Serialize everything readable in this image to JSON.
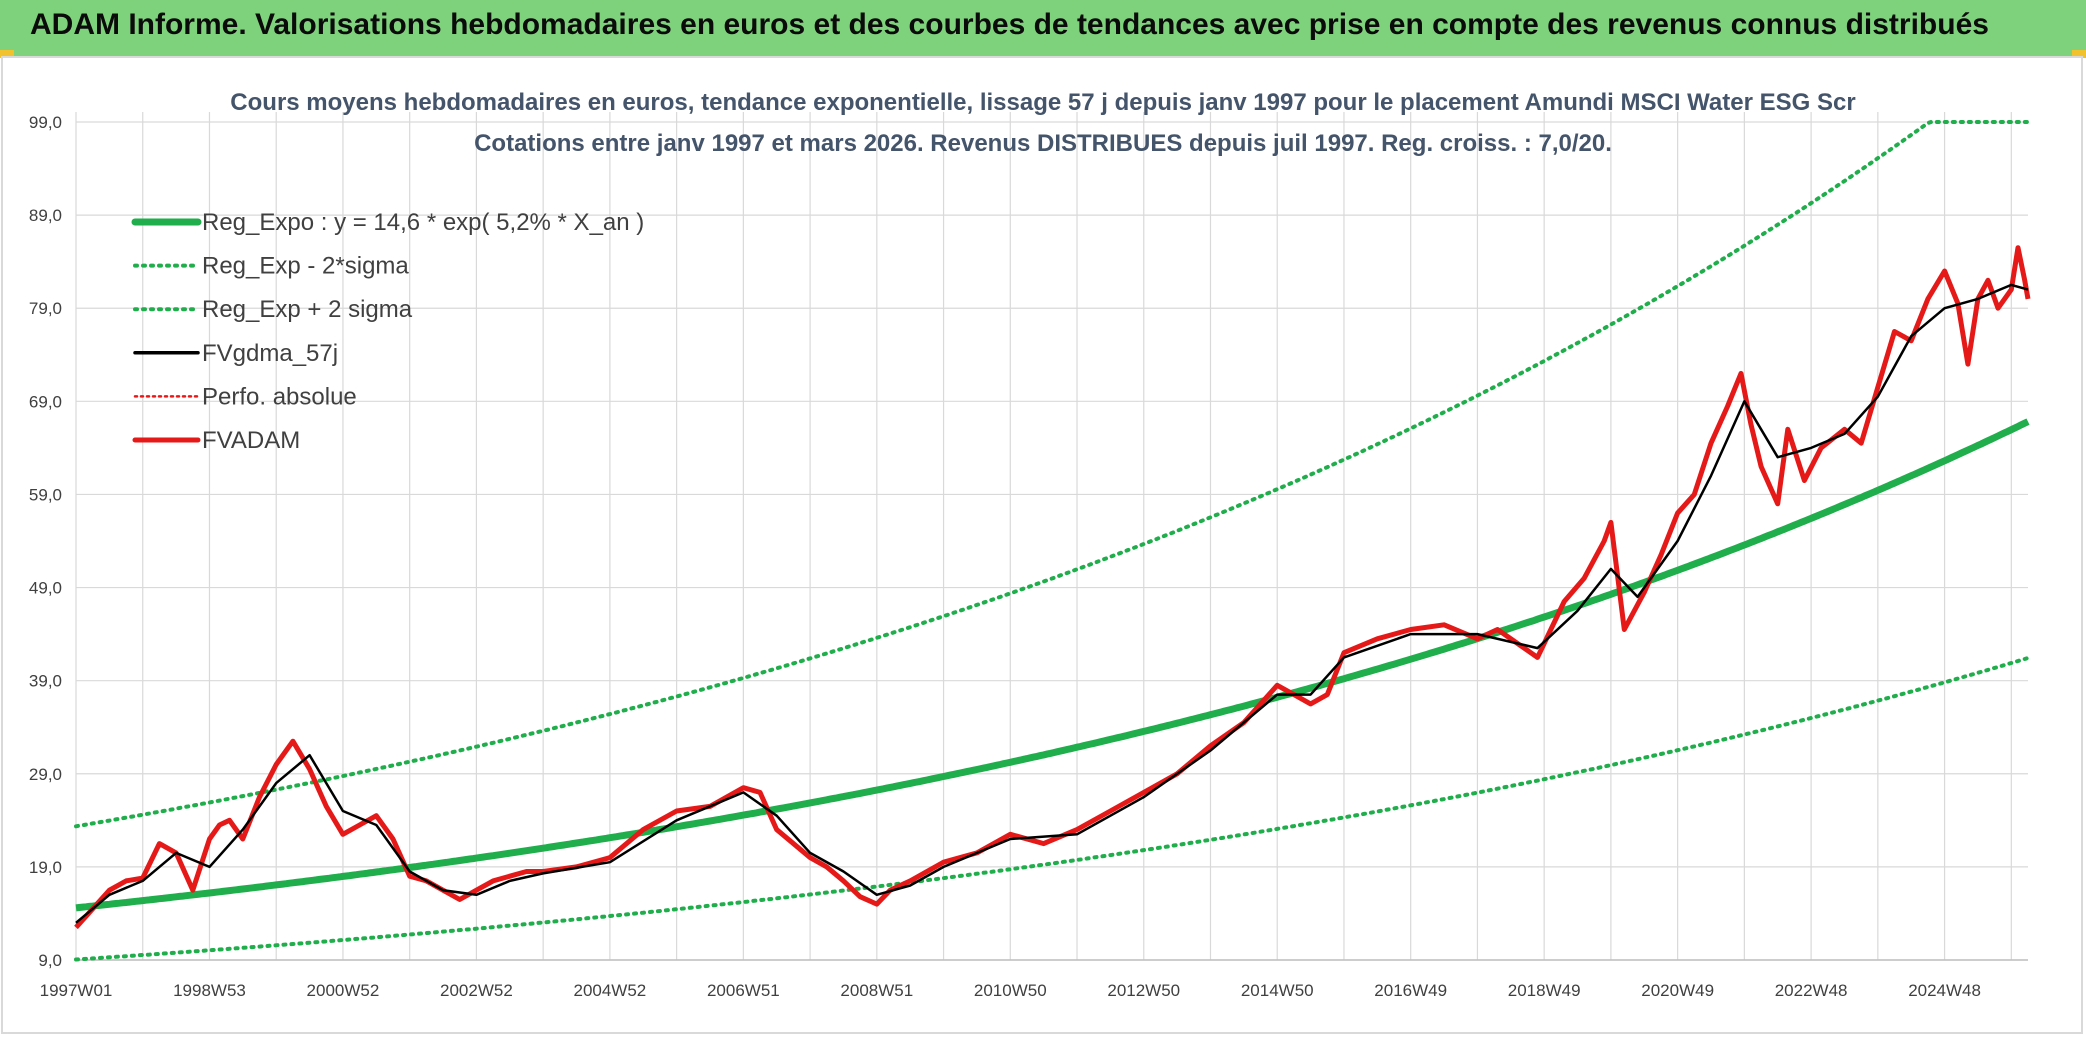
{
  "header": {
    "title": "ADAM Informe. Valorisations hebdomadaires en euros et des courbes de tendances avec prise en compte des revenus connus distribués"
  },
  "colors": {
    "header_bg": "#7fd27c",
    "trend": "#1fae4b",
    "fvgdma": "#000000",
    "fvadam": "#e61919",
    "perfo": "#e61919",
    "grid": "#d9d9d9",
    "title_text": "#44546a"
  },
  "chart_data": {
    "type": "line",
    "title": "Cours moyens hebdomadaires en euros, tendance exponentielle, lissage 57 j depuis janv 1997 pour le placement Amundi MSCI Water ESG Scr",
    "subtitle": "Cotations entre janv 1997 et mars 2026. Revenus DISTRIBUES depuis juil 1997. Reg. croiss. : 7,0/20.",
    "xlabel": "",
    "ylabel": "",
    "xlim": [
      1997.0,
      2026.25
    ],
    "ylim": [
      9,
      99
    ],
    "y_ticks": [
      "9,0",
      "19,0",
      "29,0",
      "39,0",
      "49,0",
      "59,0",
      "69,0",
      "79,0",
      "89,0",
      "99,0"
    ],
    "x_tick_labels": [
      {
        "label": "1997W01",
        "x": 1997.0
      },
      {
        "label": "1998W53",
        "x": 1999.0
      },
      {
        "label": "2000W52",
        "x": 2001.0
      },
      {
        "label": "2002W52",
        "x": 2003.0
      },
      {
        "label": "2004W52",
        "x": 2005.0
      },
      {
        "label": "2006W51",
        "x": 2007.0
      },
      {
        "label": "2008W51",
        "x": 2009.0
      },
      {
        "label": "2010W50",
        "x": 2011.0
      },
      {
        "label": "2012W50",
        "x": 2013.0
      },
      {
        "label": "2014W50",
        "x": 2015.0
      },
      {
        "label": "2016W49",
        "x": 2017.0
      },
      {
        "label": "2018W49",
        "x": 2019.0
      },
      {
        "label": "2020W49",
        "x": 2021.0
      },
      {
        "label": "2022W48",
        "x": 2023.0
      },
      {
        "label": "2024W48",
        "x": 2025.0
      }
    ],
    "legend": [
      {
        "key": "reg_expo",
        "label": "Reg_Expo : y = 14,6 * exp( 5,2% *  X_an )",
        "style": "solid-thick-green"
      },
      {
        "key": "reg_low",
        "label": "Reg_Exp - 2*sigma",
        "style": "dotted-green"
      },
      {
        "key": "reg_high",
        "label": "Reg_Exp + 2 sigma",
        "style": "dotted-green"
      },
      {
        "key": "fvgdma",
        "label": "FVgdma_57j",
        "style": "solid-black"
      },
      {
        "key": "perfo",
        "label": "Perfo. absolue",
        "style": "dotted-red"
      },
      {
        "key": "fvadam",
        "label": "FVADAM",
        "style": "solid-red"
      }
    ],
    "legend_position": "top-left",
    "trend": {
      "base": 14.6,
      "rate": 0.052,
      "start": 1997.0,
      "low_factor": 0.62,
      "high_factor": 1.6,
      "cap": 99
    },
    "series": [
      {
        "name": "FVADAM",
        "x": [
          1997.0,
          1997.25,
          1997.5,
          1997.75,
          1998.0,
          1998.25,
          1998.5,
          1998.75,
          1999.0,
          1999.15,
          1999.3,
          1999.5,
          1999.75,
          2000.0,
          2000.25,
          2000.5,
          2000.75,
          2001.0,
          2001.25,
          2001.5,
          2001.75,
          2002.0,
          2002.25,
          2002.5,
          2002.75,
          2003.0,
          2003.25,
          2003.5,
          2003.75,
          2004.0,
          2004.5,
          2005.0,
          2005.5,
          2006.0,
          2006.5,
          2007.0,
          2007.25,
          2007.5,
          2007.75,
          2008.0,
          2008.25,
          2008.5,
          2008.75,
          2009.0,
          2009.2,
          2009.5,
          2010.0,
          2010.5,
          2011.0,
          2011.5,
          2012.0,
          2012.5,
          2013.0,
          2013.5,
          2014.0,
          2014.5,
          2015.0,
          2015.25,
          2015.5,
          2015.75,
          2016.0,
          2016.5,
          2017.0,
          2017.5,
          2018.0,
          2018.3,
          2018.6,
          2018.9,
          2019.0,
          2019.3,
          2019.6,
          2019.9,
          2020.0,
          2020.2,
          2020.5,
          2020.75,
          2021.0,
          2021.25,
          2021.5,
          2021.75,
          2021.95,
          2022.1,
          2022.25,
          2022.5,
          2022.65,
          2022.9,
          2023.15,
          2023.5,
          2023.75,
          2024.0,
          2024.25,
          2024.5,
          2024.75,
          2025.0,
          2025.2,
          2025.35,
          2025.5,
          2025.65,
          2025.8,
          2026.0,
          2026.1,
          2026.2,
          2026.25
        ],
        "values": [
          12.5,
          14.5,
          16.5,
          17.5,
          17.8,
          21.5,
          20.5,
          16.5,
          22.0,
          23.5,
          24.0,
          22.0,
          26.5,
          30.0,
          32.5,
          29.5,
          25.5,
          22.5,
          23.5,
          24.5,
          22.0,
          18.0,
          17.5,
          16.5,
          15.5,
          16.5,
          17.5,
          18.0,
          18.5,
          18.5,
          19.0,
          20.0,
          23.0,
          25.0,
          25.5,
          27.5,
          27.0,
          23.0,
          21.5,
          20.0,
          19.0,
          17.5,
          15.8,
          15.0,
          16.5,
          17.5,
          19.5,
          20.5,
          22.5,
          21.5,
          23.0,
          25.0,
          27.0,
          29.0,
          32.0,
          34.5,
          38.5,
          37.5,
          36.5,
          37.5,
          42.0,
          43.5,
          44.5,
          45.0,
          43.5,
          44.5,
          43.0,
          41.5,
          43.0,
          47.5,
          50.0,
          54.0,
          56.0,
          44.5,
          48.5,
          52.5,
          57.0,
          59.0,
          64.5,
          68.5,
          72.0,
          66.5,
          62.0,
          58.0,
          66.0,
          60.5,
          64.0,
          66.0,
          64.5,
          70.5,
          76.5,
          75.5,
          80.0,
          83.0,
          79.5,
          73.0,
          80.0,
          82.0,
          79.0,
          81.0,
          85.5,
          82.0,
          80.0
        ]
      },
      {
        "name": "FVgdma_57j",
        "x": [
          1997.0,
          1997.5,
          1998.0,
          1998.5,
          1999.0,
          1999.5,
          2000.0,
          2000.5,
          2001.0,
          2001.5,
          2002.0,
          2002.5,
          2003.0,
          2003.5,
          2004.0,
          2005.0,
          2006.0,
          2007.0,
          2007.5,
          2008.0,
          2008.5,
          2009.0,
          2009.5,
          2010.0,
          2011.0,
          2012.0,
          2013.0,
          2014.0,
          2015.0,
          2015.5,
          2016.0,
          2017.0,
          2018.0,
          2018.9,
          2019.5,
          2020.0,
          2020.4,
          2021.0,
          2021.5,
          2022.0,
          2022.5,
          2023.0,
          2023.5,
          2024.0,
          2024.5,
          2025.0,
          2025.5,
          2026.0,
          2026.25
        ],
        "values": [
          13.0,
          16.0,
          17.5,
          20.5,
          19.0,
          23.0,
          28.0,
          31.0,
          25.0,
          23.5,
          18.5,
          16.5,
          16.0,
          17.5,
          18.3,
          19.5,
          24.0,
          27.0,
          24.5,
          20.5,
          18.5,
          16.0,
          17.0,
          19.0,
          22.0,
          22.5,
          26.5,
          31.5,
          37.5,
          37.5,
          41.5,
          44.0,
          44.0,
          42.5,
          46.5,
          51.0,
          48.0,
          54.0,
          61.0,
          69.0,
          63.0,
          64.0,
          65.5,
          69.5,
          76.0,
          79.0,
          80.0,
          81.5,
          81.0
        ]
      }
    ]
  }
}
